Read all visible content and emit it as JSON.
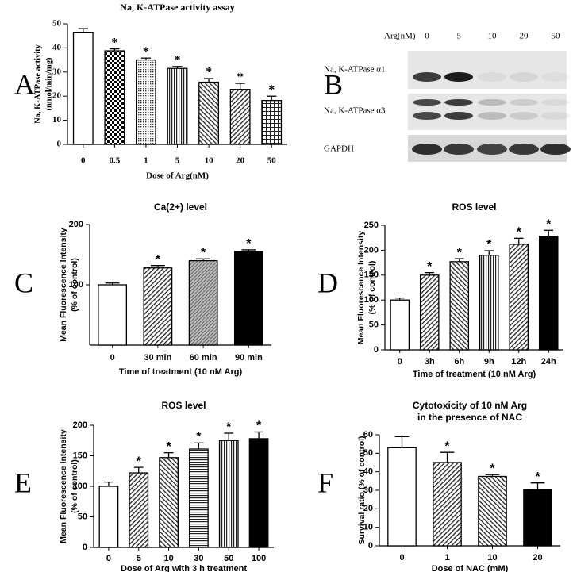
{
  "panels": [
    "A",
    "B",
    "C",
    "D",
    "E",
    "F"
  ],
  "blot": {
    "header": "Arg(nM)",
    "lanes": [
      "0",
      "5",
      "10",
      "20",
      "50"
    ],
    "rows": [
      "Na, K-ATPase α1",
      "Na, K-ATPase α3",
      "GAPDH"
    ]
  },
  "chart_data": [
    {
      "type": "bar",
      "title": "Na, K-ATPase activity assay",
      "x_label": "Dose of Arg(nM)",
      "y_label": [
        "Na, K-ATPase activity",
        "(nmol/min/mg)"
      ],
      "categories": [
        "0",
        "0.5",
        "1",
        "5",
        "10",
        "20",
        "50"
      ],
      "values": [
        46.5,
        38.8,
        35,
        31.5,
        25.8,
        22.8,
        18.2
      ],
      "errors": [
        1.5,
        0.8,
        0.8,
        0.8,
        1.5,
        2.5,
        1.8
      ],
      "significance": [
        null,
        "*",
        "*",
        "*",
        "*",
        "*",
        "*"
      ],
      "fills": [
        "white",
        "checker",
        "dots",
        "vlines",
        "diagL",
        "diagR",
        "grid"
      ],
      "ylim": [
        0,
        50
      ],
      "yticks": [
        0,
        10,
        20,
        30,
        40,
        50
      ]
    },
    {
      "type": "bar",
      "title": "Ca(2+) level",
      "x_label": "Time of treatment (10 nM Arg)",
      "y_label": [
        "Mean Fluorescence Intensity",
        "(% of control)"
      ],
      "categories": [
        "0",
        "30 min",
        "60 min",
        "90 min"
      ],
      "values": [
        100,
        128,
        140,
        155
      ],
      "errors": [
        3,
        4,
        3,
        3
      ],
      "significance": [
        null,
        "*",
        "*",
        "*"
      ],
      "fills": [
        "white",
        "diagR",
        "gray",
        "black"
      ],
      "ylim": [
        0,
        200
      ],
      "yticks": [
        100,
        200
      ]
    },
    {
      "type": "bar",
      "title": "ROS level",
      "x_label": "Time of treatment (10 nM Arg)",
      "y_label": [
        "Mean Fluorescence Intensity",
        "(% of control)"
      ],
      "categories": [
        "0",
        "3h",
        "6h",
        "9h",
        "12h",
        "24h"
      ],
      "values": [
        100,
        150,
        177,
        190,
        212,
        228
      ],
      "errors": [
        4,
        5,
        6,
        9,
        12,
        12
      ],
      "significance": [
        null,
        "*",
        "*",
        "*",
        "*",
        "*"
      ],
      "fills": [
        "white",
        "diagR",
        "diagL",
        "vlines",
        "diagR",
        "black"
      ],
      "ylim": [
        0,
        250
      ],
      "yticks": [
        0,
        50,
        100,
        150,
        200,
        250
      ]
    },
    {
      "type": "bar",
      "title": "ROS level",
      "x_label": "Dose of Arg with 3 h treatment",
      "y_label": [
        "Mean Fluorescence Intensity",
        "(% of control)"
      ],
      "categories": [
        "0",
        "5",
        "10",
        "30",
        "50",
        "100"
      ],
      "values": [
        100,
        122,
        147,
        161,
        175,
        178
      ],
      "errors": [
        7,
        9,
        8,
        10,
        12,
        11
      ],
      "significance": [
        null,
        "*",
        "*",
        "*",
        "*",
        "*"
      ],
      "fills": [
        "white",
        "diagR",
        "diagL",
        "hlines",
        "vlines",
        "black"
      ],
      "ylim": [
        0,
        200
      ],
      "yticks": [
        0,
        50,
        100,
        150,
        200
      ]
    },
    {
      "type": "bar",
      "title": "Cytotoxicity of 10 nM Arg",
      "subtitle": "in the presence of NAC",
      "x_label": "Dose of NAC (mM)",
      "y_label": [
        "Survival ratio (% of control)"
      ],
      "categories": [
        "0",
        "1",
        "10",
        "20"
      ],
      "values": [
        53,
        45,
        37.5,
        30.5
      ],
      "errors": [
        6,
        5.5,
        1,
        3.5
      ],
      "significance": [
        null,
        "*",
        "*",
        "*"
      ],
      "fills": [
        "white",
        "diagR",
        "diagL",
        "black"
      ],
      "ylim": [
        0,
        60
      ],
      "yticks": [
        0,
        10,
        20,
        30,
        40,
        50,
        60
      ]
    }
  ]
}
